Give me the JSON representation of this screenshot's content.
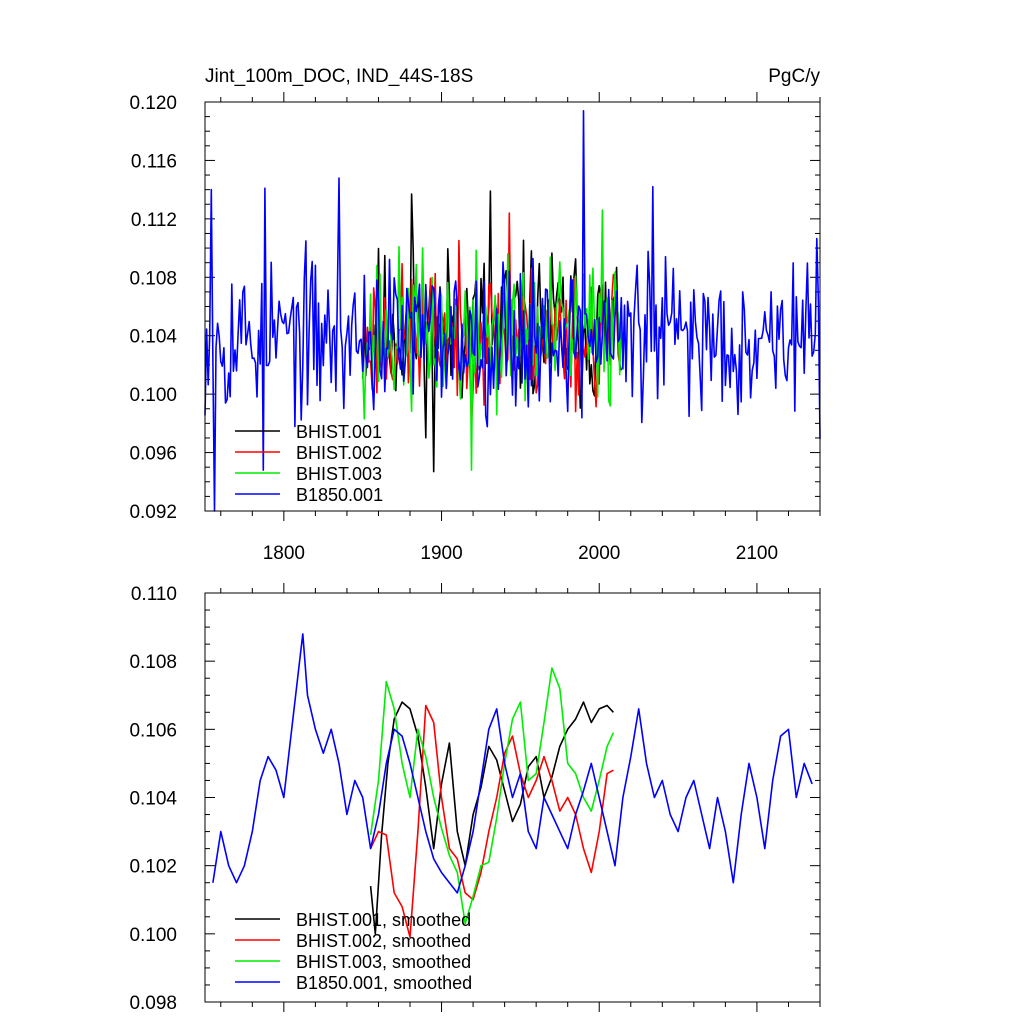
{
  "chart_data": [
    {
      "type": "line",
      "title": "Jint_100m_DOC, IND_44S-18S",
      "units": "PgC/y",
      "xlim": [
        1750,
        2140
      ],
      "ylim": [
        0.092,
        0.12
      ],
      "x_ticks": [
        1800,
        1900,
        2000,
        2100
      ],
      "x_tick_labels": [
        "1800",
        "1900",
        "2000",
        "2100"
      ],
      "y_ticks": [
        0.092,
        0.096,
        0.1,
        0.104,
        0.108,
        0.112,
        0.116,
        0.12
      ],
      "y_tick_labels": [
        "0.092",
        "0.096",
        "0.100",
        "0.104",
        "0.108",
        "0.112",
        "0.116",
        "0.120"
      ],
      "grid": false,
      "legend_position": "bottom-left",
      "series": [
        {
          "name": "BHIST.001",
          "color": "#000000",
          "x_start": 1850,
          "x_end": 2014,
          "mean": 0.1045,
          "amplitude": 0.0042,
          "seed": 11
        },
        {
          "name": "BHIST.002",
          "color": "#ff0000",
          "x_start": 1850,
          "x_end": 2014,
          "mean": 0.104,
          "amplitude": 0.0036,
          "seed": 23
        },
        {
          "name": "BHIST.003",
          "color": "#00ee00",
          "x_start": 1850,
          "x_end": 2014,
          "mean": 0.1042,
          "amplitude": 0.004,
          "seed": 37
        },
        {
          "name": "B1850.001",
          "color": "#0000ff",
          "x_start": 1750,
          "x_end": 2140,
          "mean": 0.104,
          "amplitude": 0.004,
          "seed": 53
        }
      ],
      "spikes": [
        {
          "series": "B1850.001",
          "x": 1990,
          "y": 0.1194
        },
        {
          "series": "B1850.001",
          "x": 1754,
          "y": 0.114
        },
        {
          "series": "B1850.001",
          "x": 1788,
          "y": 0.1141
        },
        {
          "series": "B1850.001",
          "x": 1835,
          "y": 0.1148
        },
        {
          "series": "B1850.001",
          "x": 2034,
          "y": 0.1142
        },
        {
          "series": "B1850.001",
          "x": 1756,
          "y": 0.092
        },
        {
          "series": "B1850.001",
          "x": 1787,
          "y": 0.0948
        },
        {
          "series": "BHIST.001",
          "x": 1881,
          "y": 0.1137
        },
        {
          "series": "BHIST.001",
          "x": 1895,
          "y": 0.0947
        },
        {
          "series": "BHIST.001",
          "x": 1931,
          "y": 0.1139
        },
        {
          "series": "BHIST.002",
          "x": 1943,
          "y": 0.1124
        },
        {
          "series": "BHIST.003",
          "x": 1919,
          "y": 0.0948
        },
        {
          "series": "BHIST.003",
          "x": 2002,
          "y": 0.1126
        }
      ]
    },
    {
      "type": "line",
      "title": "",
      "xlim": [
        1750,
        2140
      ],
      "ylim": [
        0.098,
        0.11
      ],
      "y_ticks": [
        0.098,
        0.1,
        0.102,
        0.104,
        0.106,
        0.108,
        0.11
      ],
      "y_tick_labels": [
        "0.098",
        "0.100",
        "0.102",
        "0.104",
        "0.106",
        "0.108",
        "0.110"
      ],
      "grid": false,
      "legend_position": "bottom-left",
      "series": [
        {
          "name": "BHIST.001, smoothed",
          "color": "#000000",
          "x": [
            1855,
            1858,
            1862,
            1866,
            1870,
            1875,
            1880,
            1885,
            1890,
            1895,
            1900,
            1905,
            1910,
            1915,
            1920,
            1925,
            1930,
            1935,
            1940,
            1945,
            1950,
            1955,
            1960,
            1965,
            1970,
            1975,
            1980,
            1985,
            1990,
            1995,
            2000,
            2005,
            2009
          ],
          "y": [
            0.1014,
            0.1,
            0.1029,
            0.105,
            0.1063,
            0.1068,
            0.1066,
            0.1058,
            0.1043,
            0.1025,
            0.1044,
            0.1056,
            0.103,
            0.102,
            0.1035,
            0.1043,
            0.1055,
            0.1051,
            0.1042,
            0.1033,
            0.1038,
            0.1049,
            0.1052,
            0.104,
            0.1046,
            0.1055,
            0.106,
            0.1063,
            0.1068,
            0.1062,
            0.1066,
            0.1067,
            0.1065
          ]
        },
        {
          "name": "BHIST.002, smoothed",
          "color": "#ff0000",
          "x": [
            1855,
            1860,
            1865,
            1870,
            1875,
            1880,
            1885,
            1890,
            1895,
            1900,
            1905,
            1910,
            1915,
            1920,
            1925,
            1930,
            1935,
            1940,
            1945,
            1950,
            1955,
            1960,
            1965,
            1970,
            1975,
            1980,
            1985,
            1990,
            1995,
            2000,
            2005,
            2009
          ],
          "y": [
            0.1025,
            0.103,
            0.1029,
            0.1012,
            0.1008,
            0.0999,
            0.103,
            0.1067,
            0.1062,
            0.104,
            0.1025,
            0.1022,
            0.1012,
            0.101,
            0.1018,
            0.103,
            0.104,
            0.1053,
            0.1058,
            0.1047,
            0.104,
            0.1045,
            0.1052,
            0.1045,
            0.1036,
            0.104,
            0.1035,
            0.1025,
            0.1018,
            0.103,
            0.1047,
            0.1048
          ]
        },
        {
          "name": "BHIST.003, smoothed",
          "color": "#00ee00",
          "x": [
            1855,
            1860,
            1865,
            1870,
            1875,
            1880,
            1885,
            1890,
            1895,
            1900,
            1905,
            1910,
            1915,
            1920,
            1925,
            1930,
            1935,
            1940,
            1945,
            1950,
            1955,
            1960,
            1965,
            1970,
            1975,
            1980,
            1985,
            1990,
            1995,
            2000,
            2005,
            2009
          ],
          "y": [
            0.1029,
            0.1045,
            0.1074,
            0.1066,
            0.105,
            0.104,
            0.106,
            0.1052,
            0.104,
            0.1031,
            0.1023,
            0.1018,
            0.1003,
            0.1011,
            0.102,
            0.1021,
            0.1034,
            0.105,
            0.1063,
            0.1068,
            0.1045,
            0.1047,
            0.1062,
            0.1078,
            0.1072,
            0.105,
            0.1047,
            0.104,
            0.1036,
            0.1045,
            0.1055,
            0.1059
          ]
        },
        {
          "name": "B1850.001, smoothed",
          "color": "#0000ff",
          "x": [
            1755,
            1760,
            1765,
            1770,
            1775,
            1780,
            1785,
            1790,
            1795,
            1800,
            1805,
            1810,
            1812,
            1815,
            1820,
            1825,
            1830,
            1835,
            1840,
            1845,
            1850,
            1855,
            1860,
            1865,
            1870,
            1875,
            1880,
            1885,
            1890,
            1895,
            1900,
            1905,
            1910,
            1915,
            1920,
            1925,
            1930,
            1935,
            1940,
            1945,
            1950,
            1955,
            1960,
            1965,
            1970,
            1975,
            1980,
            1985,
            1990,
            1995,
            2000,
            2005,
            2010,
            2015,
            2020,
            2025,
            2030,
            2035,
            2040,
            2045,
            2050,
            2055,
            2060,
            2065,
            2070,
            2075,
            2080,
            2085,
            2090,
            2095,
            2100,
            2105,
            2110,
            2115,
            2120,
            2125,
            2130,
            2135
          ],
          "y": [
            0.1015,
            0.103,
            0.102,
            0.1015,
            0.102,
            0.103,
            0.1045,
            0.1052,
            0.1048,
            0.104,
            0.106,
            0.108,
            0.1088,
            0.107,
            0.106,
            0.1053,
            0.106,
            0.105,
            0.1035,
            0.1045,
            0.104,
            0.1025,
            0.1035,
            0.105,
            0.106,
            0.1058,
            0.105,
            0.104,
            0.103,
            0.1022,
            0.1018,
            0.1015,
            0.1012,
            0.102,
            0.103,
            0.1045,
            0.106,
            0.1066,
            0.105,
            0.104,
            0.1047,
            0.103,
            0.1025,
            0.104,
            0.1035,
            0.103,
            0.1025,
            0.1035,
            0.1042,
            0.105,
            0.104,
            0.103,
            0.102,
            0.104,
            0.1052,
            0.1066,
            0.105,
            0.104,
            0.1045,
            0.1035,
            0.103,
            0.104,
            0.1045,
            0.1035,
            0.1025,
            0.104,
            0.103,
            0.1015,
            0.1035,
            0.105,
            0.104,
            0.1025,
            0.1045,
            0.1058,
            0.106,
            0.104,
            0.105,
            0.1044
          ]
        }
      ]
    }
  ]
}
